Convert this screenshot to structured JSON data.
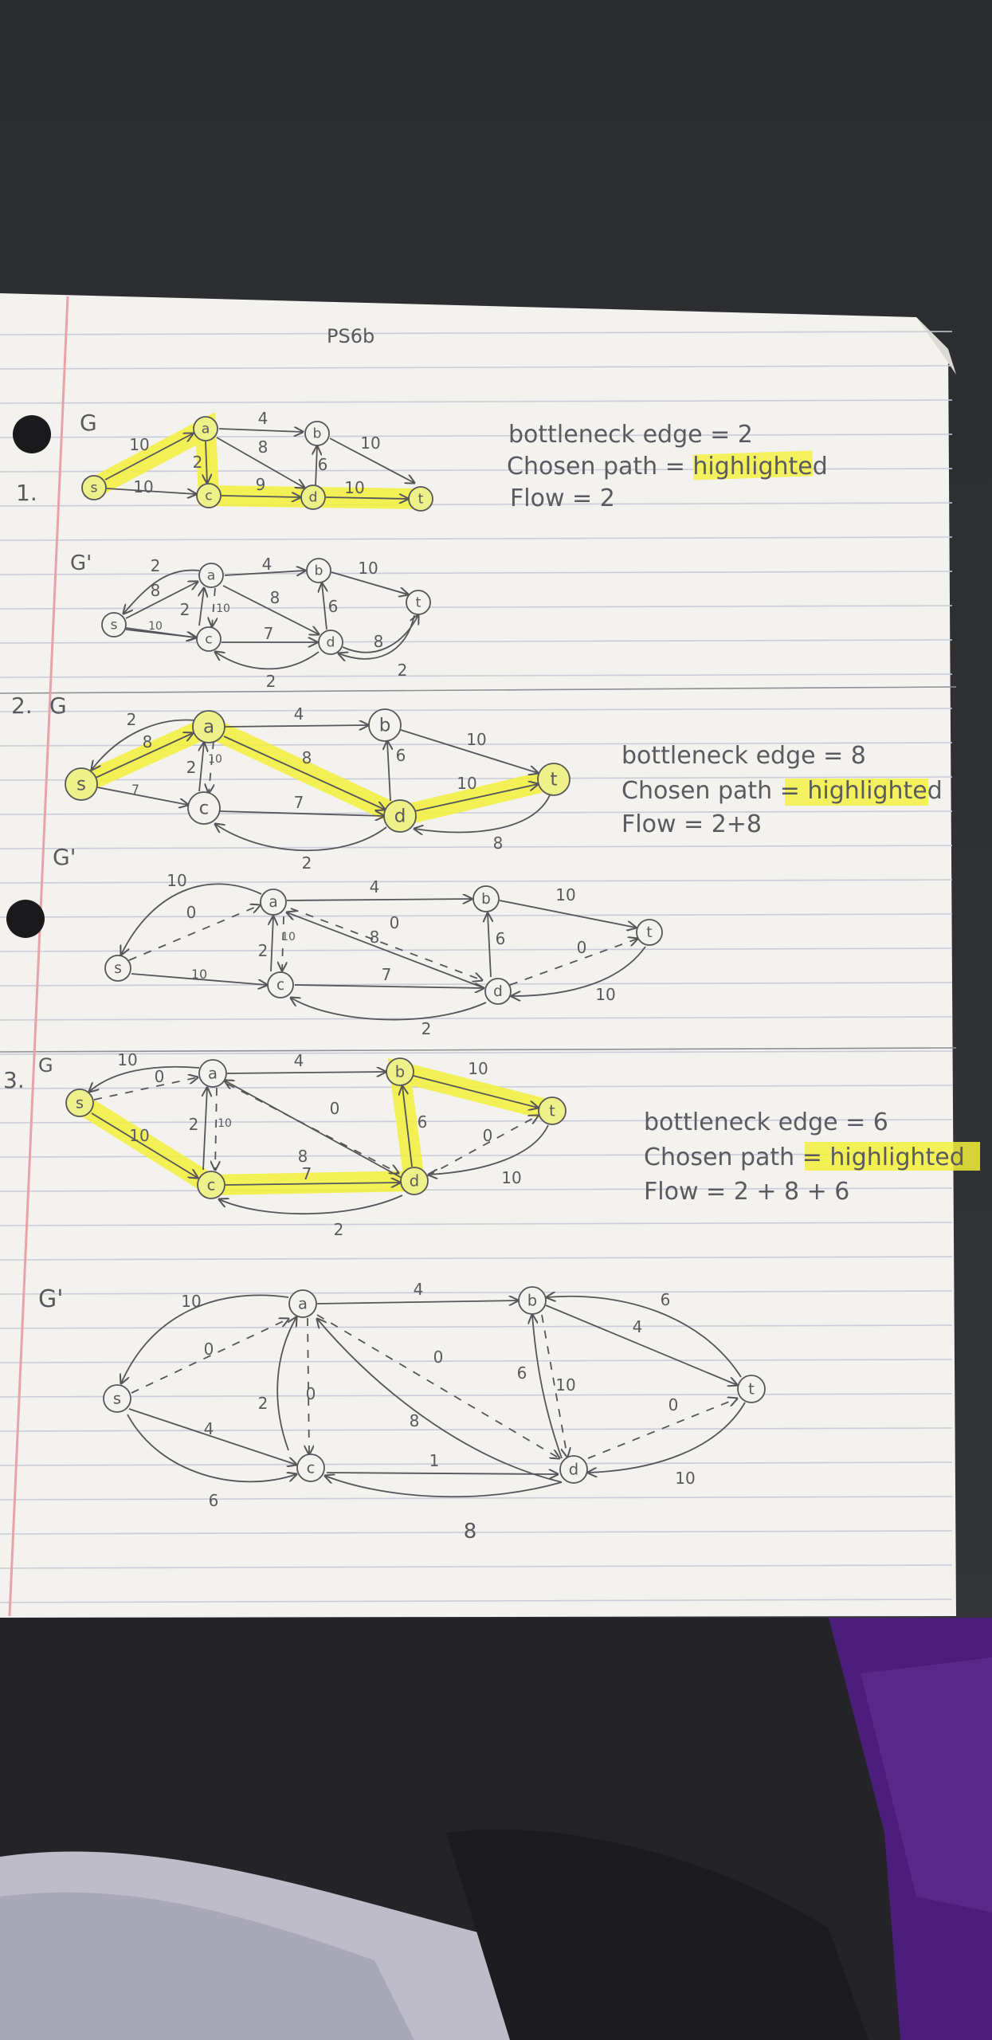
{
  "page_header": "PS6b",
  "colors": {
    "background_top": "#2f3134",
    "paper": "#f3f2ef",
    "rule_line": "#c9ccd6",
    "margin_line": "#e8a3a8",
    "highlight": "#f2f03a",
    "pencil": "#5a5a5e",
    "purple_fabric": "#4a1e7a"
  },
  "problems": [
    {
      "number": "1.",
      "graph_label": "G",
      "residual_label": "G'",
      "notes": {
        "bottleneck": "bottleneck edge = 2",
        "path_prefix": "Chosen path = ",
        "path_word": "highlighted",
        "flow": "Flow = 2"
      }
    },
    {
      "number": "2.",
      "graph_label": "G",
      "residual_label": "G'",
      "notes": {
        "bottleneck": "bottleneck edge = 8",
        "path_prefix": "Chosen path = ",
        "path_word": "highlighted",
        "flow": "Flow = 2+8"
      }
    },
    {
      "number": "3.",
      "graph_label": "G",
      "residual_label": "G'",
      "notes": {
        "bottleneck": "bottleneck edge = 6",
        "path_prefix": "Chosen path = ",
        "path_word": "highlighted",
        "flow": "Flow = 2 + 8 + 6"
      }
    }
  ],
  "node_letters": [
    "s",
    "a",
    "b",
    "c",
    "d",
    "t"
  ],
  "graphs": {
    "g1_weights": [
      "10",
      "4",
      "10",
      "10",
      "2",
      "8",
      "6",
      "9",
      "10"
    ],
    "g1r_weights": [
      "2",
      "8",
      "4",
      "10",
      "2",
      "10",
      "8",
      "6",
      "10",
      "7",
      "8",
      "2",
      "2"
    ],
    "g2_weights": [
      "2",
      "8",
      "4",
      "10",
      "2",
      "10",
      "8",
      "6",
      "7",
      "10",
      "8",
      "2",
      "2"
    ],
    "g2r_weights": [
      "10",
      "0",
      "4",
      "10",
      "2",
      "10",
      "8",
      "0",
      "6",
      "10",
      "7",
      "0",
      "10",
      "2"
    ],
    "g3_weights": [
      "10",
      "0",
      "4",
      "10",
      "10",
      "2",
      "10",
      "0",
      "8",
      "6",
      "0",
      "7",
      "10",
      "2"
    ],
    "g3r_weights": [
      "10",
      "0",
      "4",
      "6",
      "4",
      "2",
      "0",
      "0",
      "8",
      "6",
      "10",
      "0",
      "4",
      "6",
      "1",
      "10",
      "8"
    ]
  }
}
